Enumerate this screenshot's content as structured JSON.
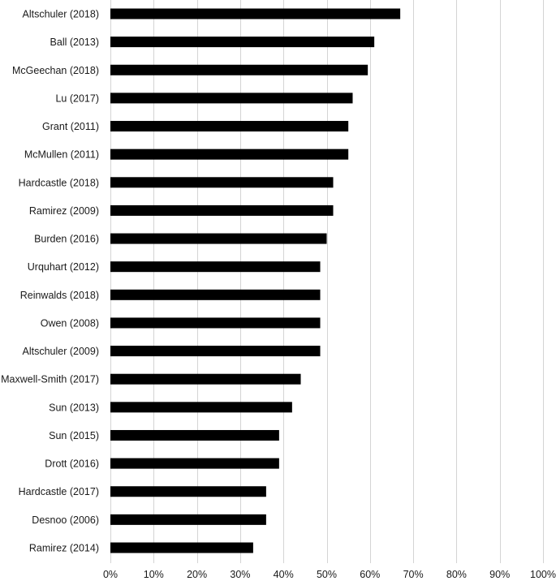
{
  "chart_data": {
    "type": "bar",
    "orientation": "horizontal",
    "categories": [
      "Altschuler (2018)",
      "Ball (2013)",
      "McGeechan (2018)",
      "Lu (2017)",
      "Grant (2011)",
      "McMullen (2011)",
      "Hardcastle (2018)",
      "Ramirez (2009)",
      "Burden (2016)",
      "Urquhart (2012)",
      "Reinwalds (2018)",
      "Owen (2008)",
      "Altschuler (2009)",
      "Maxwell-Smith (2017)",
      "Sun (2013)",
      "Sun (2015)",
      "Drott (2016)",
      "Hardcastle (2017)",
      "Desnoo (2006)",
      "Ramirez (2014)"
    ],
    "values": [
      67,
      61,
      59.5,
      56,
      55,
      55,
      51.5,
      51.5,
      50,
      48.5,
      48.5,
      48.5,
      48.5,
      44,
      42,
      39,
      39,
      36,
      36,
      33
    ],
    "xlim": [
      0,
      100
    ],
    "x_ticks": [
      0,
      10,
      20,
      30,
      40,
      50,
      60,
      70,
      80,
      90,
      100
    ],
    "x_tick_labels": [
      "0%",
      "10%",
      "20%",
      "30%",
      "40%",
      "50%",
      "60%",
      "70%",
      "80%",
      "90%",
      "100%"
    ],
    "grid": "vertical",
    "bar_color": "#000000",
    "grid_color": "#d4d4d4",
    "title": "",
    "xlabel": "",
    "ylabel": ""
  }
}
